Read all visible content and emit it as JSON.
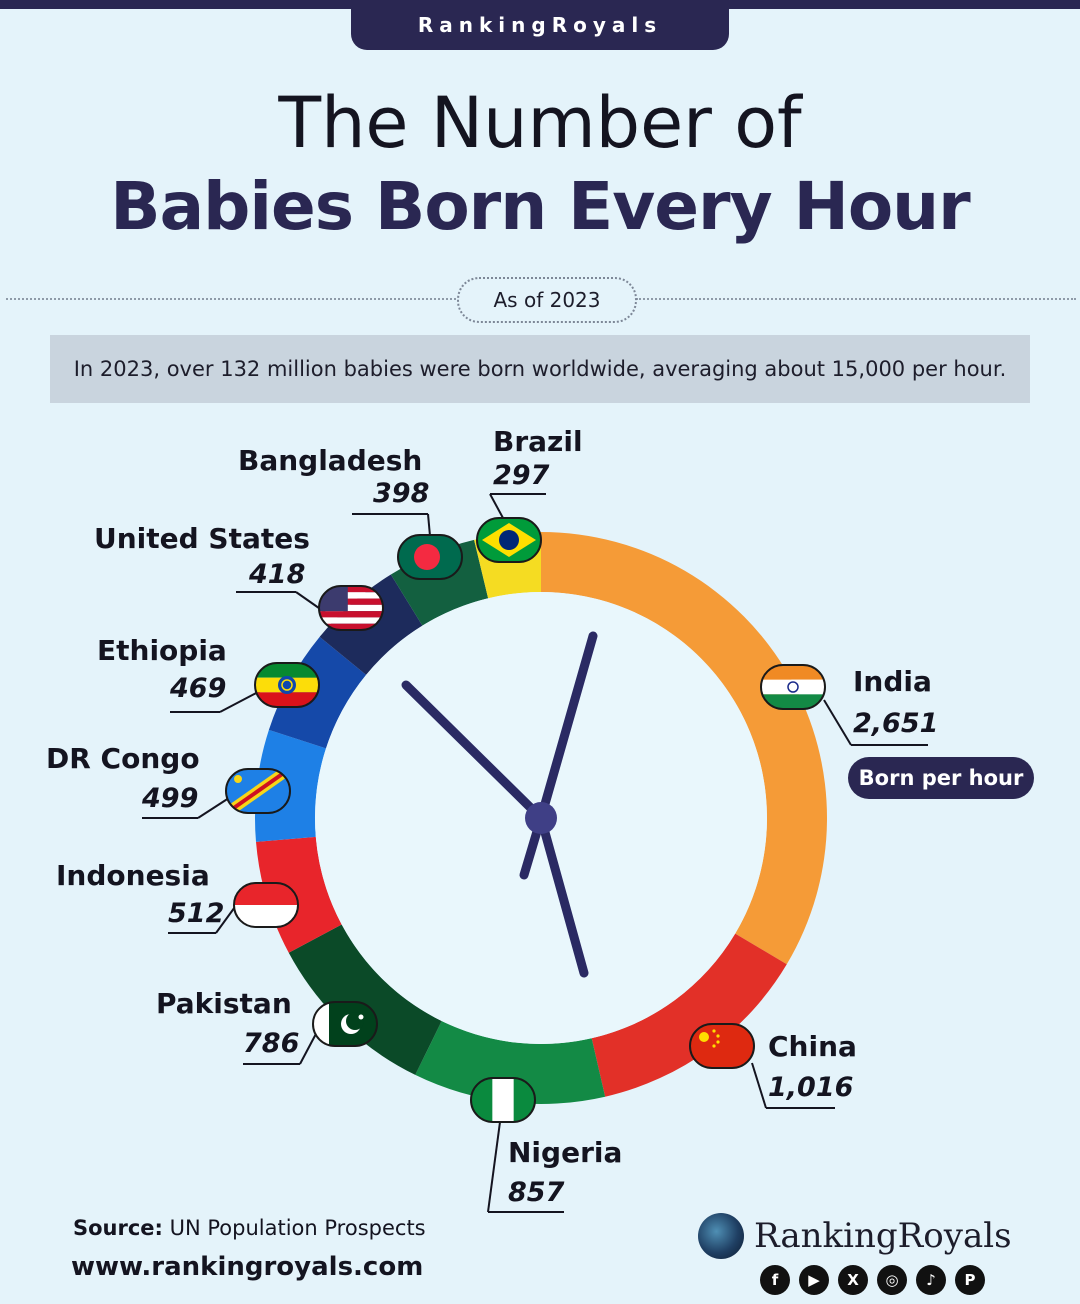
{
  "brand_tab": "RankingRoyals",
  "title_line1": "The Number of",
  "title_line2": "Babies Born Every Hour",
  "as_of": "As of 2023",
  "summary": "In 2023, over 132 million babies were born worldwide, averaging about 15,000 per hour.",
  "unit_pill": "Born per hour",
  "source_label": "Source:",
  "source_text": " UN Population Prospects",
  "website": "www.rankingroyals.com",
  "logo_text": "RankingRoyals",
  "social_icons": [
    "facebook-icon",
    "youtube-icon",
    "x-icon",
    "instagram-icon",
    "tiktok-icon",
    "pinterest-icon"
  ],
  "social_glyphs": [
    "f",
    "▶",
    "X",
    "◎",
    "♪",
    "P"
  ],
  "colors": {
    "dark_navy": "#2a2752",
    "background": "#e4f3fa",
    "hand": "#2a2a63"
  },
  "chart_data": {
    "type": "pie",
    "style": "donut clock",
    "title": "Babies Born Every Hour",
    "unit": "Born per hour",
    "categories": [
      "India",
      "China",
      "Nigeria",
      "Pakistan",
      "Indonesia",
      "DR Congo",
      "Ethiopia",
      "United States",
      "Bangladesh",
      "Brazil"
    ],
    "values": [
      2651,
      1016,
      857,
      786,
      512,
      499,
      469,
      418,
      398,
      297
    ],
    "value_labels": [
      "2,651",
      "1,016",
      "857",
      "786",
      "512",
      "499",
      "469",
      "418",
      "398",
      "297"
    ],
    "colors": [
      "#f59b37",
      "#e23028",
      "#138a45",
      "#0b4a28",
      "#e8252b",
      "#1e80e6",
      "#1549a9",
      "#1d2b5c",
      "#136040",
      "#f5dc22"
    ],
    "flag_icons": [
      "india-flag-icon",
      "china-flag-icon",
      "nigeria-flag-icon",
      "pakistan-flag-icon",
      "indonesia-flag-icon",
      "drcongo-flag-icon",
      "ethiopia-flag-icon",
      "usa-flag-icon",
      "bangladesh-flag-icon",
      "brazil-flag-icon"
    ]
  }
}
